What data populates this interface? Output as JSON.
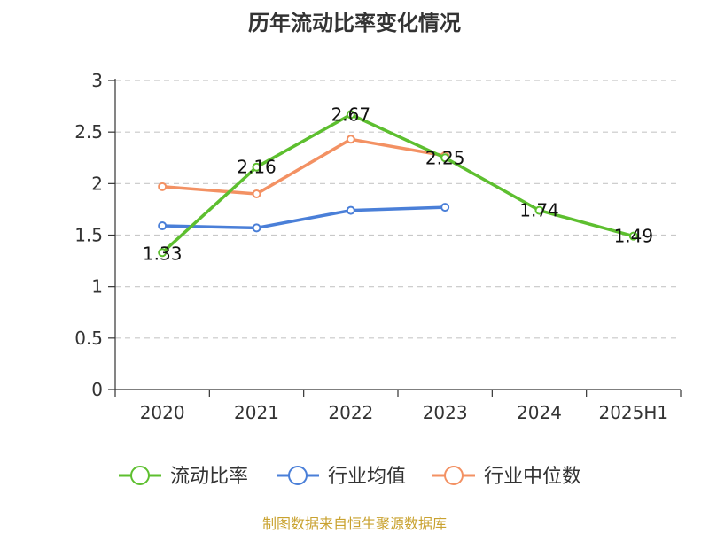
{
  "chart_data": {
    "type": "line",
    "title": "历年流动比率变化情况",
    "categories": [
      "2020",
      "2021",
      "2022",
      "2023",
      "2024",
      "2025H1"
    ],
    "ylim": [
      0,
      3
    ],
    "yticks": [
      "0",
      "0.5",
      "1",
      "1.5",
      "2",
      "2.5",
      "3"
    ],
    "grid": true,
    "legend_position": "bottom",
    "series": [
      {
        "name": "流动比率",
        "color": "#5dbf2f",
        "values": [
          1.33,
          2.16,
          2.67,
          2.25,
          1.74,
          1.49
        ],
        "labels": [
          "1.33",
          "2.16",
          "2.67",
          "2.25",
          "1.74",
          "1.49"
        ]
      },
      {
        "name": "行业均值",
        "color": "#4a7fd8",
        "values": [
          1.59,
          1.57,
          1.74,
          1.77,
          null,
          null
        ]
      },
      {
        "name": "行业中位数",
        "color": "#f39163",
        "values": [
          1.97,
          1.9,
          2.43,
          2.27,
          null,
          null
        ]
      }
    ]
  },
  "source": "制图数据来自恒生聚源数据库"
}
